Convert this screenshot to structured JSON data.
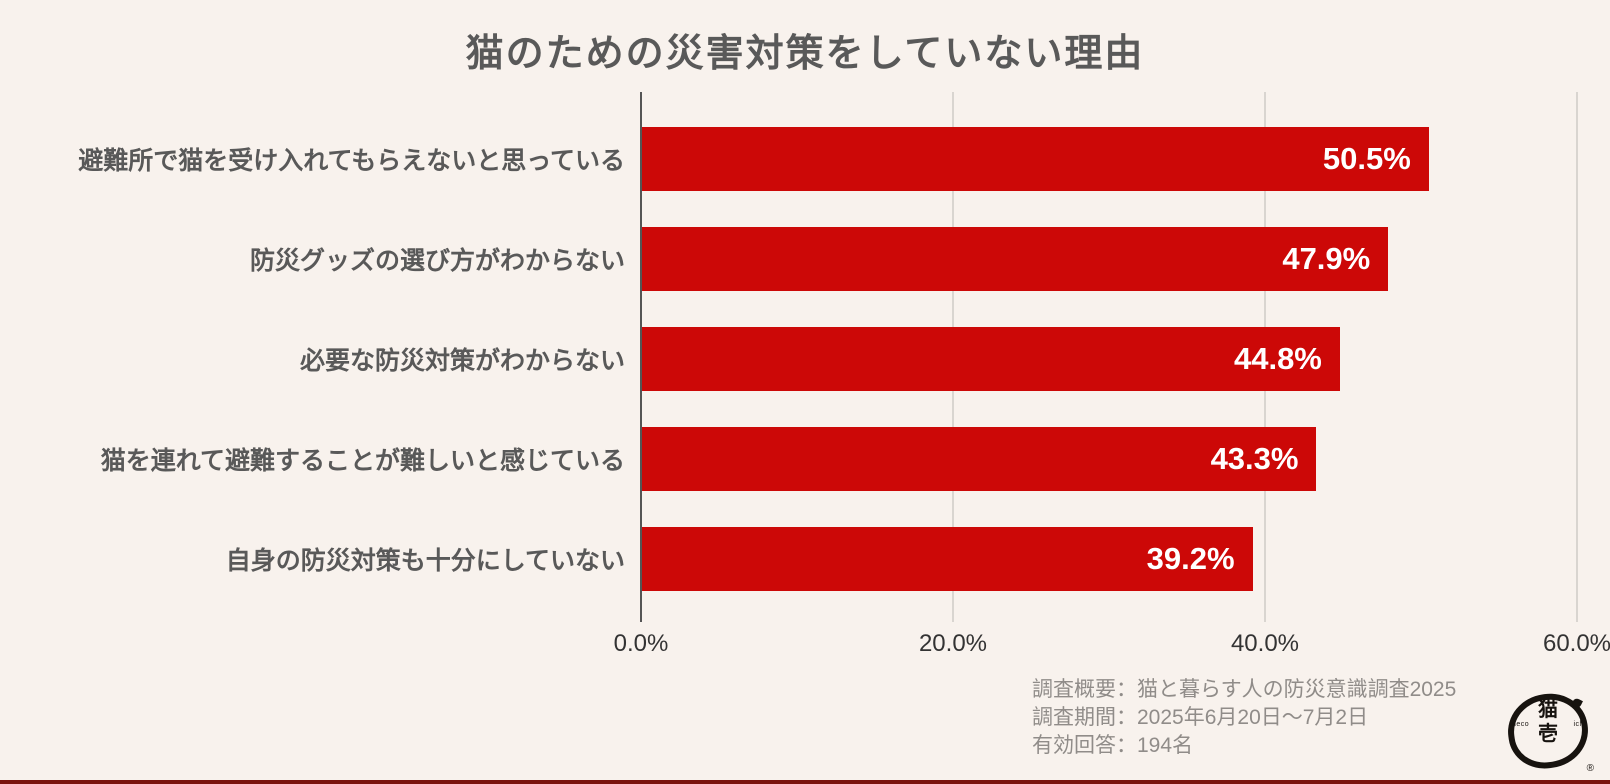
{
  "page": {
    "background_color": "#f8f2ed",
    "accent_bar_color": "#7a130e"
  },
  "chart_data": {
    "type": "bar",
    "orientation": "horizontal",
    "title": "猫のための災害対策をしていない理由",
    "categories": [
      "避難所で猫を受け入れてもらえないと思っている",
      "防災グッズの選び方がわからない",
      "必要な防災対策がわからない",
      "猫を連れて避難することが難しいと感じている",
      "自身の防災対策も十分にしていない"
    ],
    "values": [
      50.5,
      47.9,
      44.8,
      43.3,
      39.2
    ],
    "value_labels": [
      "50.5%",
      "47.9%",
      "44.8%",
      "43.3%",
      "39.2%"
    ],
    "xlim": [
      0,
      60
    ],
    "x_ticks": [
      0,
      20,
      40,
      60
    ],
    "x_tick_labels": [
      "0.0%",
      "20.0%",
      "40.0%",
      "60.0%"
    ],
    "bar_color": "#cc0807",
    "grid": true,
    "legend_position": "none"
  },
  "footer": {
    "meta_lines": [
      "調査概要：猫と暮らす人の防災意識調査2025",
      "調査期間：2025年6月20日〜7月2日",
      "有効回答：194名"
    ],
    "logo": {
      "kanji_top": "猫",
      "kanji_bottom": "壱",
      "latin_left": "neco",
      "latin_right": "ichi",
      "registered_mark": "®"
    }
  }
}
